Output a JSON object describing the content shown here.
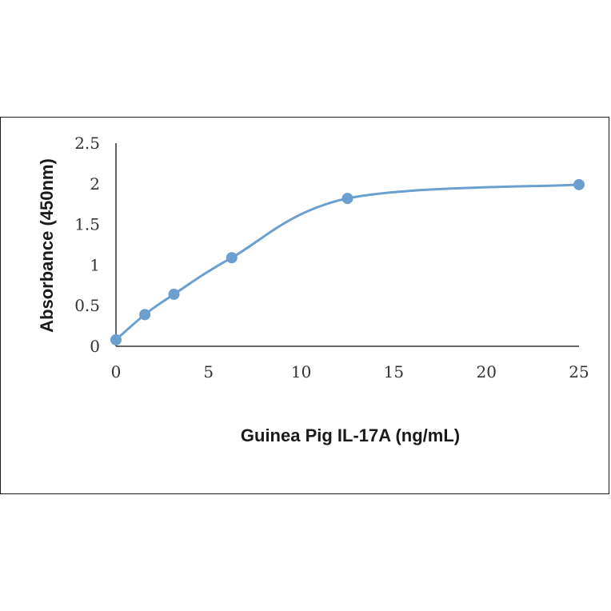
{
  "chart_data": {
    "type": "line",
    "title": "",
    "xlabel": "Guinea Pig IL-17A (ng/mL)",
    "ylabel": "Absorbance (450nm)",
    "xlim": [
      0,
      25
    ],
    "ylim": [
      0,
      2.5
    ],
    "x_ticks": [
      "0",
      "5",
      "10",
      "15",
      "20",
      "25"
    ],
    "y_ticks": [
      "0",
      "0.5",
      "1",
      "1.5",
      "2",
      "2.5"
    ],
    "grid": false,
    "legend": "none",
    "smooth": true,
    "series": [
      {
        "x": [
          0,
          1.56,
          3.13,
          6.25,
          12.5,
          25
        ],
        "y": [
          0.08,
          0.39,
          0.64,
          1.09,
          1.82,
          1.99
        ],
        "color": "#6a9fd0"
      }
    ]
  }
}
